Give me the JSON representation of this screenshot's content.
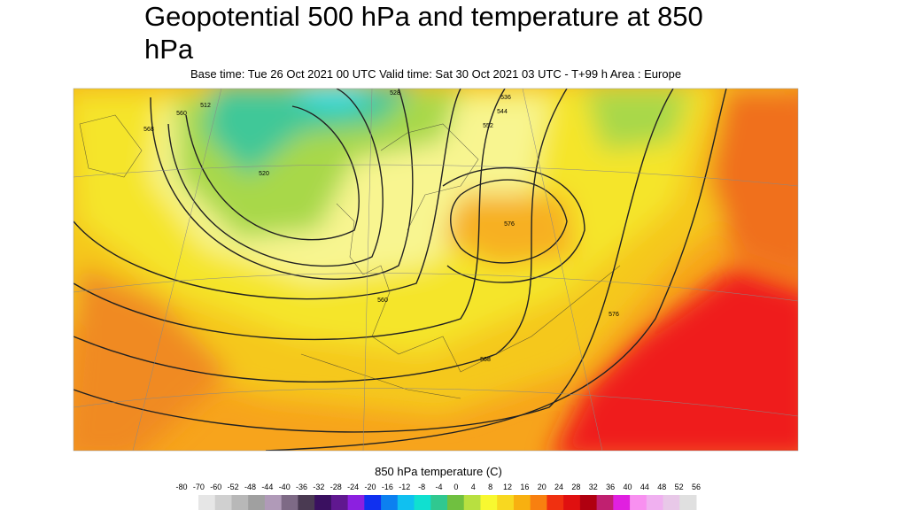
{
  "header": {
    "title": "Geopotential 500 hPa and temperature at 850 hPa",
    "subtitle": "Base time: Tue 26 Oct 2021 00 UTC Valid time: Sat 30 Oct 2021 03 UTC - T+99 h Area : Europe"
  },
  "map": {
    "contour_labels": [
      "528",
      "536",
      "544",
      "552",
      "560",
      "568",
      "576",
      "520",
      "512",
      "560",
      "568",
      "576"
    ]
  },
  "colorbar": {
    "label": "850 hPa temperature (C)",
    "ticks": [
      -80,
      -70,
      -60,
      -52,
      -48,
      -44,
      -40,
      -36,
      -32,
      -28,
      -24,
      -20,
      -16,
      -12,
      -8,
      -4,
      0,
      4,
      8,
      12,
      16,
      20,
      24,
      28,
      32,
      36,
      40,
      44,
      48,
      52,
      56
    ],
    "colors": [
      "#e6e6e6",
      "#d0d0d0",
      "#b8b8b8",
      "#a0a0a0",
      "#b09ab8",
      "#7e6a86",
      "#4a3a52",
      "#3a1060",
      "#601890",
      "#8c20e0",
      "#1030f0",
      "#0c80f0",
      "#10c0f0",
      "#10e0d0",
      "#30c890",
      "#70c040",
      "#b8e040",
      "#f8f830",
      "#f8d820",
      "#f8b010",
      "#f88010",
      "#f03010",
      "#e01010",
      "#b00010",
      "#c02070",
      "#e020e0",
      "#f890f0",
      "#f0b0f0",
      "#e8c8e8",
      "#e0e0e0"
    ]
  }
}
